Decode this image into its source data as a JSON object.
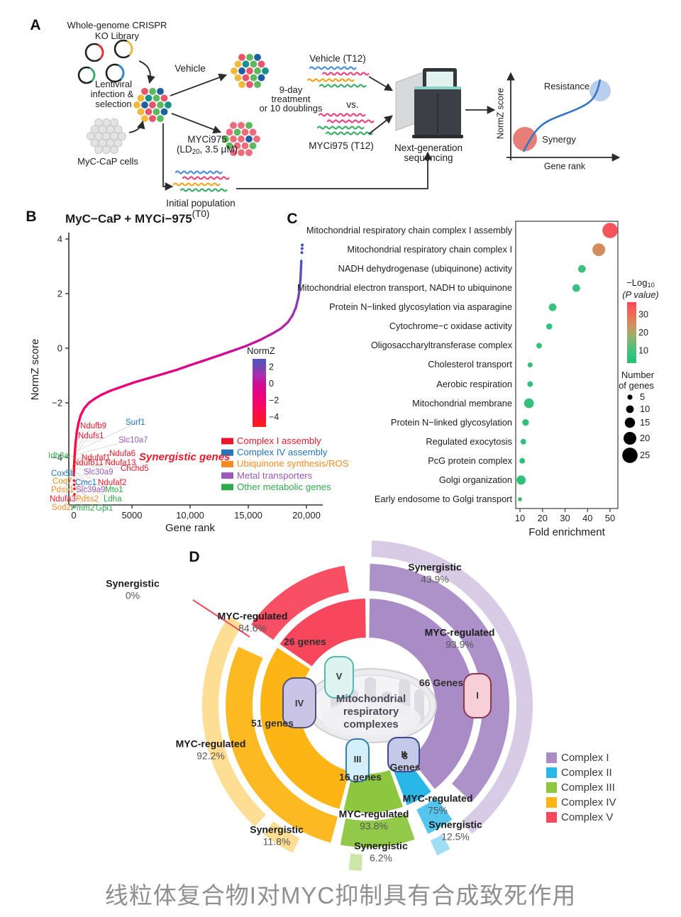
{
  "panels": {
    "a": "A",
    "b": "B",
    "c": "C",
    "d": "D"
  },
  "caption": "线粒体复合物I对MYC抑制具有合成致死作用",
  "palette": {
    "arrow": "#2b2b2b",
    "squiggle_blue": "#4a90d9",
    "squiggle_magenta": "#e8467c",
    "squiggle_orange": "#f5a623",
    "squiggle_green": "#3dae6b",
    "cell_red": "#e8556a",
    "cell_red_treated": "#ec6b7d",
    "cell_green": "#5cb85c",
    "cell_blue": "#1d5fa0",
    "cell_yellow": "#f0b93c",
    "cell_teal": "#17918a",
    "cell_gray": "#e3e3e3",
    "mini_curve": "#3575cc",
    "mini_resistance_fill": "#b9cfec",
    "mini_synergy_fill": "#e0695f"
  },
  "panel_a": {
    "library_label_1": "Whole-genome CRISPR",
    "library_label_2": "KO Library",
    "lenti_1": "Lentiviral",
    "lenti_2": "infection &",
    "lenti_3": "selection",
    "cells_label": "MyC-CaP cells",
    "vehicle_label": "Vehicle",
    "myci_1": "MYCi975",
    "myci_ld_pre": "(LD",
    "myci_ld_sub": "20",
    "myci_ld_post": ", 3.5 μM)",
    "treatment_1": "9-day",
    "treatment_2": "treatment",
    "treatment_3": "or 10 doublings",
    "vs_label": "vs.",
    "vehicle_t12": "Vehicle (T12)",
    "myci_t12": "MYCi975 (T12)",
    "initial_1": "Initial population",
    "initial_2": "(T0)",
    "ngs_1": "Next-generation",
    "ngs_2": "sequencing",
    "mini": {
      "resistance": "Resistance",
      "synergy": "Synergy",
      "ylabel": "NormZ score",
      "xlabel": "Gene rank"
    }
  },
  "chart_data": [
    {
      "type": "line",
      "title": "MyC−CaP + MYCi−975",
      "xlabel": "Gene rank",
      "ylabel": "NormZ score",
      "xlim": [
        -800,
        21500
      ],
      "ylim": [
        -6,
        4.3
      ],
      "xticks": [
        0,
        5000,
        10000,
        15000,
        20000
      ],
      "xtick_labels": [
        "0",
        "5000",
        "10,000",
        "15,000",
        "20,000"
      ],
      "yticks": [
        4,
        2,
        0,
        -2,
        -4
      ],
      "curve": [
        [
          0,
          -4.65
        ],
        [
          30,
          -4.3
        ],
        [
          80,
          -3.9
        ],
        [
          150,
          -3.5
        ],
        [
          250,
          -3.1
        ],
        [
          400,
          -2.75
        ],
        [
          600,
          -2.45
        ],
        [
          900,
          -2.2
        ],
        [
          1300,
          -2.0
        ],
        [
          1800,
          -1.85
        ],
        [
          2400,
          -1.7
        ],
        [
          3200,
          -1.55
        ],
        [
          4200,
          -1.4
        ],
        [
          5200,
          -1.25
        ],
        [
          6400,
          -1.1
        ],
        [
          7600,
          -0.95
        ],
        [
          8800,
          -0.8
        ],
        [
          10000,
          -0.62
        ],
        [
          11200,
          -0.45
        ],
        [
          12400,
          -0.28
        ],
        [
          13600,
          -0.1
        ],
        [
          14800,
          0.08
        ],
        [
          16000,
          0.3
        ],
        [
          17000,
          0.52
        ],
        [
          17800,
          0.72
        ],
        [
          18400,
          0.95
        ],
        [
          18800,
          1.2
        ],
        [
          19100,
          1.5
        ],
        [
          19300,
          1.85
        ],
        [
          19420,
          2.2
        ],
        [
          19490,
          2.55
        ],
        [
          19530,
          2.9
        ],
        [
          19560,
          3.2
        ]
      ],
      "top_outliers": [
        [
          19600,
          3.5
        ],
        [
          19620,
          3.65
        ],
        [
          19640,
          3.78
        ]
      ],
      "bottom_outliers": [
        [
          30,
          -4.85
        ],
        [
          40,
          -5.0
        ],
        [
          50,
          -5.15
        ],
        [
          60,
          -5.35
        ]
      ],
      "colormap": {
        "title": "NormZ",
        "ticks": [
          2,
          0,
          -2,
          -4
        ]
      },
      "annotation": "Synergistic genes",
      "categories_legend": [
        {
          "label": "Complex I assembly",
          "color": "#e8192c"
        },
        {
          "label": "Complex IV assembly",
          "color": "#2474bd"
        },
        {
          "label": "Ubiquinone synthesis/ROS",
          "color": "#f68b1f"
        },
        {
          "label": "Metal transporters",
          "color": "#9c59b6"
        },
        {
          "label": "Other metabolic genes",
          "color": "#2eab4a"
        }
      ],
      "genes": [
        {
          "name": "Ndufb9",
          "category": 0
        },
        {
          "name": "Surf1",
          "category": 1
        },
        {
          "name": "Ndufs1",
          "category": 0
        },
        {
          "name": "Slc10a7",
          "category": 3
        },
        {
          "name": "Idh3a",
          "category": 4
        },
        {
          "name": "Ndufa6",
          "category": 0
        },
        {
          "name": "Ndufaf1",
          "category": 0
        },
        {
          "name": "Ndufb11",
          "category": 0
        },
        {
          "name": "Ndufa13",
          "category": 0
        },
        {
          "name": "Chchd5",
          "category": 0
        },
        {
          "name": "Cox5b",
          "category": 1
        },
        {
          "name": "Slc30a9",
          "category": 3
        },
        {
          "name": "Coq7",
          "category": 2
        },
        {
          "name": "Cmc1",
          "category": 1
        },
        {
          "name": "Ndufaf2",
          "category": 0
        },
        {
          "name": "Pdss1",
          "category": 2
        },
        {
          "name": "Slc39a9",
          "category": 3
        },
        {
          "name": "Mto1",
          "category": 4
        },
        {
          "name": "Ndufa3",
          "category": 0
        },
        {
          "name": "Pdss2",
          "category": 2
        },
        {
          "name": "Ldha",
          "category": 4
        },
        {
          "name": "Sod2",
          "category": 2
        },
        {
          "name": "Pmm2",
          "category": 4
        },
        {
          "name": "Gpi1",
          "category": 4
        }
      ]
    },
    {
      "type": "scatter",
      "xlabel": "Fold enrichment",
      "xticks": [
        10,
        20,
        30,
        40,
        50
      ],
      "xlim": [
        8,
        53
      ],
      "color_legend": {
        "title_log": "−Log",
        "title_log_sub": "10",
        "title_paren": "(P value)",
        "ticks": [
          30,
          20,
          10
        ]
      },
      "size_legend": {
        "title_1": "Number",
        "title_2": "of genes",
        "sizes": [
          5,
          10,
          15,
          20,
          25
        ]
      },
      "terms": [
        {
          "label": "Mitochondrial respiratory chain complex I assembly",
          "fold": 50,
          "genes": 25,
          "logp": 35
        },
        {
          "label": "Mitochondrial respiratory chain complex I",
          "fold": 45,
          "genes": 20,
          "logp": 25
        },
        {
          "label": "NADH dehydrogenase (ubiquinone) activity",
          "fold": 37.5,
          "genes": 10,
          "logp": 9
        },
        {
          "label": "Mitochondrial electron transport, NADH to ubiquinone",
          "fold": 35,
          "genes": 10,
          "logp": 9
        },
        {
          "label": "Protein N−linked glycosylation via asparagine",
          "fold": 24.5,
          "genes": 10,
          "logp": 8
        },
        {
          "label": "Cytochrome−c oxidase activity",
          "fold": 23,
          "genes": 7,
          "logp": 7
        },
        {
          "label": "Oligosaccharyltransferase complex",
          "fold": 18.5,
          "genes": 6,
          "logp": 7
        },
        {
          "label": "Cholesterol transport",
          "fold": 14.5,
          "genes": 5,
          "logp": 6
        },
        {
          "label": "Aerobic respiration",
          "fold": 14.5,
          "genes": 6,
          "logp": 6
        },
        {
          "label": "Mitochondrial membrane",
          "fold": 14,
          "genes": 14,
          "logp": 7
        },
        {
          "label": "Protein N−linked glycosylation",
          "fold": 12.5,
          "genes": 8,
          "logp": 6
        },
        {
          "label": "Regulated exocytosis",
          "fold": 11.5,
          "genes": 6,
          "logp": 6
        },
        {
          "label": "PcG protein complex",
          "fold": 11,
          "genes": 6,
          "logp": 6
        },
        {
          "label": "Golgi organization",
          "fold": 10.5,
          "genes": 13,
          "logp": 6
        },
        {
          "label": "Early endosome to Golgi transport",
          "fold": 10,
          "genes": 3,
          "logp": 5
        }
      ]
    },
    {
      "type": "sunburst",
      "center_1": "Mitochondrial",
      "center_2": "respiratory",
      "center_3": "complexes",
      "complexes": [
        {
          "name": "Complex I",
          "numeral": "I",
          "color": "#a98bc6",
          "genes": 66,
          "genes_line1": "66 Genes",
          "genes_line2": "",
          "myc_label": "MYC-regulated",
          "myc_pct": 93.9,
          "myc_value": "93.9%",
          "syn_label": "Synergistic",
          "syn_pct": 43.9,
          "syn_value": "43.9%"
        },
        {
          "name": "Complex II",
          "numeral": "II",
          "color": "#29b7e8",
          "genes": 8,
          "genes_line1": "8",
          "genes_line2": "Genes",
          "myc_label": "MYC-regulated",
          "myc_pct": 75,
          "myc_value": "75%",
          "syn_label": "Synergistic",
          "syn_pct": 12.5,
          "syn_value": "12.5%"
        },
        {
          "name": "Complex III",
          "numeral": "III",
          "color": "#8dc63f",
          "genes": 16,
          "genes_line1": "16 genes",
          "genes_line2": "",
          "myc_label": "MYC-regulated",
          "myc_pct": 93.8,
          "myc_value": "93.8%",
          "syn_label": "Synergistic",
          "syn_pct": 6.2,
          "syn_value": "6.2%"
        },
        {
          "name": "Complex IV",
          "numeral": "IV",
          "color": "#fdb515",
          "genes": 51,
          "genes_line1": "51 genes",
          "genes_line2": "",
          "myc_label": "MYC-regulated",
          "myc_pct": 92.2,
          "myc_value": "92.2%",
          "syn_label": "Synergistic",
          "syn_pct": 11.8,
          "syn_value": "11.8%"
        },
        {
          "name": "Complex V",
          "numeral": "V",
          "color": "#f8465c",
          "genes": 26,
          "genes_line1": "26 genes",
          "genes_line2": "",
          "myc_label": "MYC-regulated",
          "myc_pct": 84.6,
          "myc_value": "84.6%",
          "syn_label": "Synergistic",
          "syn_pct": 0,
          "syn_value": "0%"
        }
      ]
    }
  ]
}
